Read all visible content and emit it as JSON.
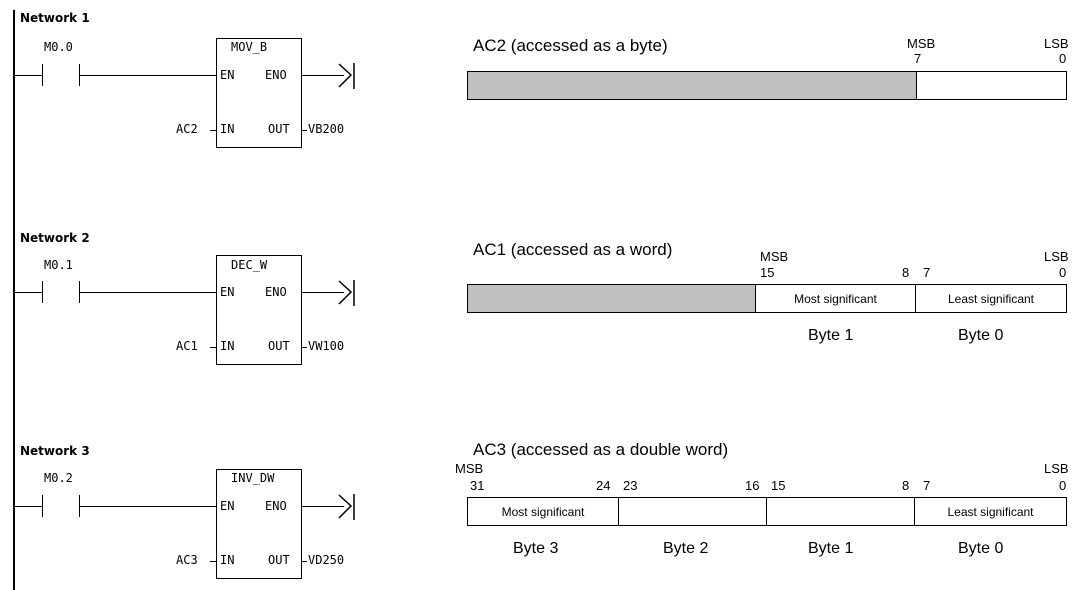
{
  "networks": [
    {
      "label": "Network 1",
      "contact": "M0.0",
      "instruction": "MOV_B",
      "en": "EN",
      "eno": "ENO",
      "in_pin": "IN",
      "out_pin": "OUT",
      "in_operand": "AC2",
      "out_operand": "VB200"
    },
    {
      "label": "Network 2",
      "contact": "M0.1",
      "instruction": "DEC_W",
      "en": "EN",
      "eno": "ENO",
      "in_pin": "IN",
      "out_pin": "OUT",
      "in_operand": "AC1",
      "out_operand": "VW100"
    },
    {
      "label": "Network 3",
      "contact": "M0.2",
      "instruction": "INV_DW",
      "en": "EN",
      "eno": "ENO",
      "in_pin": "IN",
      "out_pin": "OUT",
      "in_operand": "AC3",
      "out_operand": "VD250"
    }
  ],
  "registers": {
    "ac2": {
      "caption": "AC2 (accessed as a byte)",
      "msb": "MSB",
      "lsb": "LSB",
      "bits": [
        "7",
        "0"
      ]
    },
    "ac1": {
      "caption": "AC1 (accessed as a word)",
      "msb": "MSB",
      "lsb": "LSB",
      "bits": [
        "15",
        "8",
        "7",
        "0"
      ],
      "cells": [
        "Most significant",
        "Least significant"
      ],
      "bytes": [
        "Byte 1",
        "Byte 0"
      ]
    },
    "ac3": {
      "caption": "AC3 (accessed as a double word)",
      "msb": "MSB",
      "lsb": "LSB",
      "bits": [
        "31",
        "24",
        "23",
        "16",
        "15",
        "8",
        "7",
        "0"
      ],
      "cells": [
        "Most significant",
        "",
        "",
        "Least significant"
      ],
      "bytes": [
        "Byte 3",
        "Byte 2",
        "Byte 1",
        "Byte 0"
      ]
    }
  },
  "colors": {
    "unused_bits": "#c0c0c0",
    "line": "#000000"
  }
}
